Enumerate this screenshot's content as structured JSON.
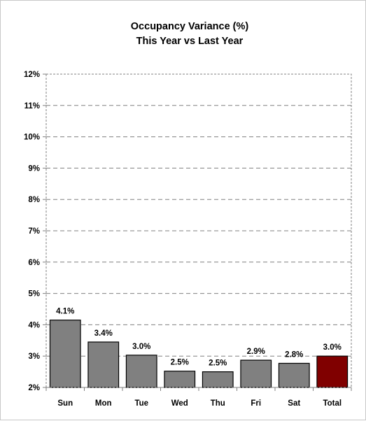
{
  "chart_data": {
    "type": "bar",
    "title": [
      "Occupancy Variance (%)",
      "This Year vs Last Year"
    ],
    "categories": [
      "Sun",
      "Mon",
      "Tue",
      "Wed",
      "Thu",
      "Fri",
      "Sat",
      "Total"
    ],
    "values": [
      4.15,
      3.45,
      3.03,
      2.52,
      2.5,
      2.87,
      2.77,
      3.0
    ],
    "data_labels": [
      "4.1%",
      "3.4%",
      "3.0%",
      "2.5%",
      "2.5%",
      "2.9%",
      "2.8%",
      "3.0%"
    ],
    "ylim": [
      2,
      12
    ],
    "y_ticks": [
      2,
      3,
      4,
      5,
      6,
      7,
      8,
      9,
      10,
      11,
      12
    ],
    "y_tick_labels": [
      "2%",
      "3%",
      "4%",
      "5%",
      "6%",
      "7%",
      "8%",
      "9%",
      "10%",
      "11%",
      "12%"
    ],
    "grid": true,
    "colors": {
      "bar": "#808080",
      "highlight": "#800000",
      "highlight_category": "Total"
    }
  }
}
